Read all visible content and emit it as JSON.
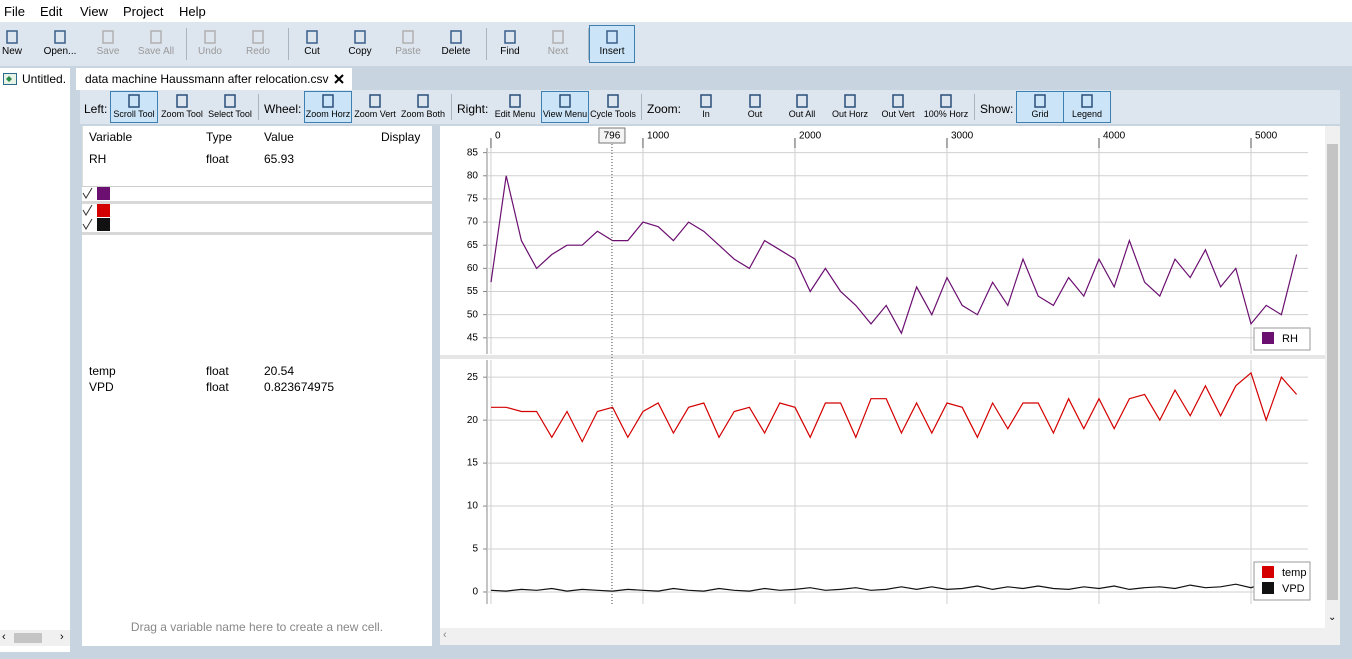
{
  "menu": [
    "File",
    "Edit",
    "View",
    "Project",
    "Help"
  ],
  "toolbar": [
    {
      "label": "New",
      "enabled": true
    },
    {
      "label": "Open...",
      "enabled": true
    },
    {
      "label": "Save",
      "enabled": false
    },
    {
      "label": "Save All",
      "enabled": false
    },
    {
      "label": "Undo",
      "enabled": false
    },
    {
      "label": "Redo",
      "enabled": false
    },
    {
      "label": "Cut",
      "enabled": true
    },
    {
      "label": "Copy",
      "enabled": true
    },
    {
      "label": "Paste",
      "enabled": false
    },
    {
      "label": "Delete",
      "enabled": true
    },
    {
      "label": "Find",
      "enabled": true
    },
    {
      "label": "Next",
      "enabled": false
    },
    {
      "label": "Insert",
      "enabled": true,
      "active": true
    }
  ],
  "sidebar": {
    "item": "Untitled."
  },
  "tab": {
    "title": "data machine Haussmann after relocation.csv"
  },
  "tools": [
    {
      "label": "Left:",
      "buttons": [
        {
          "label": "Scroll Tool",
          "active": true
        },
        {
          "label": "Zoom Tool",
          "active": false
        },
        {
          "label": "Select Tool",
          "active": false
        }
      ]
    },
    {
      "label": "Wheel:",
      "buttons": [
        {
          "label": "Zoom Horz",
          "active": true
        },
        {
          "label": "Zoom Vert",
          "active": false
        },
        {
          "label": "Zoom Both",
          "active": false
        }
      ]
    },
    {
      "label": "Right:",
      "buttons": [
        {
          "label": "Edit Menu",
          "active": false
        },
        {
          "label": "View Menu",
          "active": true
        },
        {
          "label": "Cycle Tools",
          "active": false
        }
      ]
    },
    {
      "label": "Zoom:",
      "buttons": [
        {
          "label": "In",
          "active": false
        },
        {
          "label": "Out",
          "active": false
        },
        {
          "label": "Out All",
          "active": false
        },
        {
          "label": "Out Horz",
          "active": false
        },
        {
          "label": "Out Vert",
          "active": false
        },
        {
          "label": "100% Horz",
          "active": false
        }
      ]
    },
    {
      "label": "Show:",
      "buttons": [
        {
          "label": "Grid",
          "active": true
        },
        {
          "label": "Legend",
          "active": true
        }
      ]
    }
  ],
  "table": {
    "headers": [
      "Variable",
      "Type",
      "Value",
      "Display"
    ],
    "cells": [
      {
        "rows": [
          [
            "RH",
            "float",
            "65.93"
          ]
        ]
      },
      {
        "rows": [
          [
            "temp",
            "float",
            "20.54"
          ],
          [
            "VPD",
            "float",
            "0.823674975"
          ]
        ]
      }
    ],
    "footer": "Drag a variable name here to create a new cell."
  },
  "chart_data": [
    {
      "type": "line",
      "grid": true,
      "legend": "lower right",
      "cursor": 796,
      "x": [
        0,
        100,
        200,
        300,
        400,
        500,
        600,
        700,
        800,
        900,
        1000,
        1100,
        1200,
        1300,
        1400,
        1500,
        1600,
        1700,
        1800,
        1900,
        2000,
        2100,
        2200,
        2300,
        2400,
        2500,
        2600,
        2700,
        2800,
        2900,
        3000,
        3100,
        3200,
        3300,
        3400,
        3500,
        3600,
        3700,
        3800,
        3900,
        4000,
        4100,
        4200,
        4300,
        4400,
        4500,
        4600,
        4700,
        4800,
        4900,
        5000,
        5100,
        5200,
        5300
      ],
      "xlim": [
        -26,
        5375
      ],
      "xticks": [
        0,
        1000,
        2000,
        3000,
        4000,
        5000
      ],
      "ylim": [
        41.5,
        86
      ],
      "yticks": [
        45,
        50,
        55,
        60,
        65,
        70,
        75,
        80,
        85
      ],
      "series": [
        {
          "name": "RH",
          "color": "#6b0f70",
          "values": [
            57,
            80,
            66,
            60,
            63,
            65,
            65,
            68,
            66,
            66,
            70,
            69,
            66,
            70,
            68,
            65,
            62,
            60,
            66,
            64,
            62,
            55,
            60,
            55,
            52,
            48,
            52,
            46,
            56,
            50,
            58,
            52,
            50,
            57,
            52,
            62,
            54,
            52,
            58,
            54,
            62,
            56,
            66,
            57,
            54,
            62,
            58,
            64,
            56,
            60,
            48,
            52,
            50,
            63
          ]
        }
      ]
    },
    {
      "type": "line",
      "grid": true,
      "legend": "lower right",
      "x": [
        0,
        100,
        200,
        300,
        400,
        500,
        600,
        700,
        800,
        900,
        1000,
        1100,
        1200,
        1300,
        1400,
        1500,
        1600,
        1700,
        1800,
        1900,
        2000,
        2100,
        2200,
        2300,
        2400,
        2500,
        2600,
        2700,
        2800,
        2900,
        3000,
        3100,
        3200,
        3300,
        3400,
        3500,
        3600,
        3700,
        3800,
        3900,
        4000,
        4100,
        4200,
        4300,
        4400,
        4500,
        4600,
        4700,
        4800,
        4900,
        5000,
        5100,
        5200,
        5300
      ],
      "ylim": [
        -1.4,
        27
      ],
      "yticks": [
        0,
        5,
        10,
        15,
        20,
        25
      ],
      "series": [
        {
          "name": "temp",
          "color": "#d40000",
          "values": [
            21.5,
            21.5,
            21,
            21,
            18,
            21,
            17.5,
            21,
            21.5,
            18,
            21,
            22,
            18.5,
            21.5,
            22,
            18,
            21,
            21.5,
            18.5,
            22,
            21.5,
            18,
            22,
            22,
            18,
            22.5,
            22.5,
            18.5,
            22,
            18.5,
            22,
            21.5,
            18,
            22,
            19,
            22,
            22,
            18.5,
            22.5,
            19,
            22.5,
            19,
            22.5,
            23,
            20,
            23.5,
            20.5,
            24,
            20.5,
            24,
            25.5,
            20,
            25,
            23
          ]
        },
        {
          "name": "VPD",
          "color": "#111111",
          "values": [
            0.2,
            0.1,
            0.3,
            0.2,
            0.4,
            0.1,
            0.3,
            0.2,
            0.1,
            0.3,
            0.2,
            0.1,
            0.4,
            0.2,
            0.1,
            0.4,
            0.2,
            0.1,
            0.4,
            0.2,
            0.3,
            0.5,
            0.2,
            0.3,
            0.5,
            0.2,
            0.3,
            0.6,
            0.3,
            0.6,
            0.3,
            0.4,
            0.7,
            0.3,
            0.6,
            0.4,
            0.7,
            0.4,
            0.3,
            0.6,
            0.4,
            0.7,
            0.3,
            0.5,
            0.6,
            0.4,
            0.8,
            0.5,
            0.6,
            0.9,
            0.5,
            1.1,
            0.8,
            0.9
          ]
        }
      ]
    }
  ]
}
